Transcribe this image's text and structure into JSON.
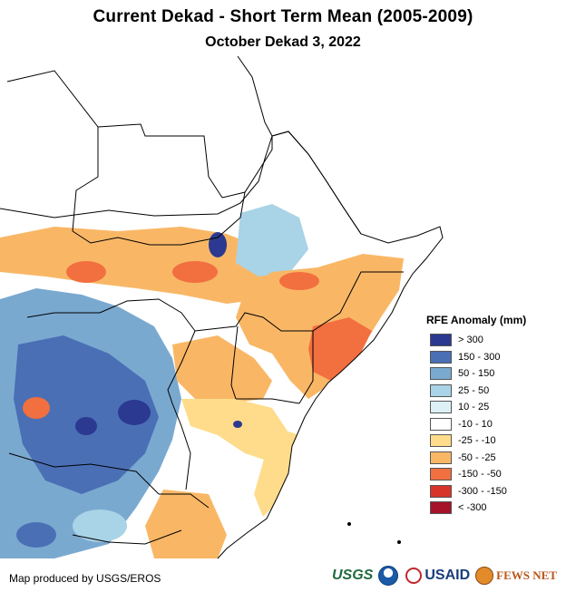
{
  "header": {
    "title": "Current Dekad - Short Term Mean (2005-2009)",
    "subtitle": "October Dekad 3, 2022"
  },
  "legend": {
    "title": "RFE Anomaly (mm)",
    "items": [
      {
        "label": "> 300",
        "color": "#2b3990"
      },
      {
        "label": "150 - 300",
        "color": "#4a6fb5"
      },
      {
        "label": "50 - 150",
        "color": "#7aa9d0"
      },
      {
        "label": "25 - 50",
        "color": "#a9d3e6"
      },
      {
        "label": "10 - 25",
        "color": "#dcf0f6"
      },
      {
        "label": "-10 - 10",
        "color": "#ffffff"
      },
      {
        "label": "-25 - -10",
        "color": "#fedc8b"
      },
      {
        "label": "-50 - -25",
        "color": "#f9b766"
      },
      {
        "label": "-150 - -50",
        "color": "#f26f3f"
      },
      {
        "label": "-300 - -150",
        "color": "#d8352a"
      },
      {
        "label": "< -300",
        "color": "#a5122a"
      }
    ]
  },
  "footer": {
    "credit": "Map produced by USGS/EROS",
    "logos": {
      "usgs": "USGS",
      "noaa": "noaa-logo",
      "usaid": "USAID",
      "fews": "FEWS NET"
    }
  }
}
